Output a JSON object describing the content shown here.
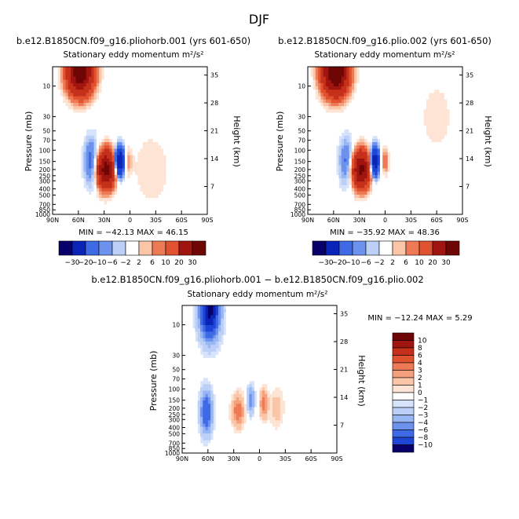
{
  "page_title": "DJF",
  "colors": {
    "blues": [
      "#08006a",
      "#0b24b8",
      "#1f45d6",
      "#3f6ae6",
      "#6d92ee",
      "#98b6f3",
      "#bcd0f7",
      "#d6e3fa"
    ],
    "neutral": "#ffffff",
    "reds": [
      "#fde4d4",
      "#fbc6a8",
      "#f5a07d",
      "#ee7a55",
      "#e0512f",
      "#c5301b",
      "#a01510",
      "#6e0605"
    ],
    "background_field": "#d6e3fa"
  },
  "chart_data": [
    {
      "id": "left",
      "type": "contour",
      "title": "b.e12.B1850CN.f09_g16.pliohorb.001 (yrs 601-650)",
      "subtitle": "Stationary eddy momentum m²/s²",
      "ylabel": "Pressure (mb)",
      "y2label": "Height (km)",
      "x_ticks": [
        "90N",
        "60N",
        "30N",
        "0",
        "30S",
        "60S",
        "90S"
      ],
      "y_ticks": [
        "10",
        "30",
        "50",
        "70",
        "100",
        "150",
        "200",
        "250",
        "300",
        "400",
        "500",
        "700",
        "850",
        "1000"
      ],
      "y2_ticks": [
        "35",
        "28",
        "21",
        "14",
        "7"
      ],
      "stats_text": "MIN = −42.13   MAX =  46.15",
      "min": -42.13,
      "max": 46.15,
      "features": [
        {
          "lat": 58,
          "p": 6,
          "lat_spread": 10,
          "p_spread": 0.55,
          "value": 40
        },
        {
          "lat": 28,
          "p": 200,
          "lat_spread": 7,
          "p_spread": 0.45,
          "value": 35
        },
        {
          "lat": 12,
          "p": 150,
          "lat_spread": 3.5,
          "p_spread": 0.35,
          "value": -33
        },
        {
          "lat": 45,
          "p": 150,
          "lat_spread": 6,
          "p_spread": 0.6,
          "value": -8
        },
        {
          "lat": 2,
          "p": 150,
          "lat_spread": 3,
          "p_spread": 0.3,
          "value": 4
        },
        {
          "lat": -25,
          "p": 200,
          "lat_spread": 15,
          "p_spread": 0.9,
          "value": 2
        }
      ]
    },
    {
      "id": "right",
      "type": "contour",
      "title": "b.e12.B1850CN.f09_g16.plio.002 (yrs 601-650)",
      "subtitle": "Stationary eddy momentum m²/s²",
      "ylabel": "Pressure (mb)",
      "y2label": "Height (km)",
      "x_ticks": [
        "90N",
        "60N",
        "30N",
        "0",
        "30S",
        "60S",
        "90S"
      ],
      "y_ticks": [
        "10",
        "30",
        "50",
        "70",
        "100",
        "150",
        "200",
        "250",
        "300",
        "400",
        "500",
        "700",
        "850",
        "1000"
      ],
      "y2_ticks": [
        "35",
        "28",
        "21",
        "14",
        "7"
      ],
      "stats_text": "MIN = −35.92   MAX =  48.36",
      "min": -35.92,
      "max": 48.36,
      "features": [
        {
          "lat": 58,
          "p": 6,
          "lat_spread": 10,
          "p_spread": 0.55,
          "value": 45
        },
        {
          "lat": 28,
          "p": 200,
          "lat_spread": 7,
          "p_spread": 0.45,
          "value": 33
        },
        {
          "lat": 12,
          "p": 150,
          "lat_spread": 3.5,
          "p_spread": 0.35,
          "value": -28
        },
        {
          "lat": 45,
          "p": 150,
          "lat_spread": 6,
          "p_spread": 0.6,
          "value": -7
        },
        {
          "lat": 0,
          "p": 150,
          "lat_spread": 3,
          "p_spread": 0.3,
          "value": 6
        },
        {
          "lat": -60,
          "p": 30,
          "lat_spread": 12,
          "p_spread": 0.8,
          "value": 2
        }
      ]
    },
    {
      "id": "diff",
      "type": "contour",
      "title": "b.e12.B1850CN.f09_g16.pliohorb.001 − b.e12.B1850CN.f09_g16.plio.002",
      "subtitle": "Stationary eddy momentum m²/s²",
      "ylabel": "Pressure (mb)",
      "y2label": "Height (km)",
      "x_ticks": [
        "90N",
        "60N",
        "30N",
        "0",
        "30S",
        "60S",
        "90S"
      ],
      "y_ticks": [
        "10",
        "30",
        "50",
        "70",
        "100",
        "150",
        "200",
        "250",
        "300",
        "400",
        "500",
        "700",
        "850",
        "1000"
      ],
      "y2_ticks": [
        "35",
        "28",
        "21",
        "14",
        "7"
      ],
      "stats_text": "MIN = −12.24   MAX =   5.29",
      "min": -12.24,
      "max": 5.29,
      "features": [
        {
          "lat": 58,
          "p": 6,
          "lat_spread": 8,
          "p_spread": 0.7,
          "value": -11
        },
        {
          "lat": 62,
          "p": 230,
          "lat_spread": 5,
          "p_spread": 0.55,
          "value": -6
        },
        {
          "lat": 25,
          "p": 220,
          "lat_spread": 5,
          "p_spread": 0.4,
          "value": 4
        },
        {
          "lat": 10,
          "p": 150,
          "lat_spread": 3,
          "p_spread": 0.35,
          "value": -4
        },
        {
          "lat": -5,
          "p": 170,
          "lat_spread": 3,
          "p_spread": 0.35,
          "value": 4
        },
        {
          "lat": -20,
          "p": 200,
          "lat_spread": 6,
          "p_spread": 0.5,
          "value": 1.5
        }
      ]
    }
  ],
  "colorbars": {
    "top": {
      "labels": [
        "−30",
        "−20",
        "−10",
        "−6",
        "−2",
        "2",
        "6",
        "10",
        "20",
        "30"
      ]
    },
    "diff": {
      "labels": [
        "10",
        "8",
        "6",
        "4",
        "3",
        "2",
        "1",
        "0",
        "−1",
        "−2",
        "−3",
        "−4",
        "−6",
        "−8",
        "−10"
      ]
    }
  }
}
